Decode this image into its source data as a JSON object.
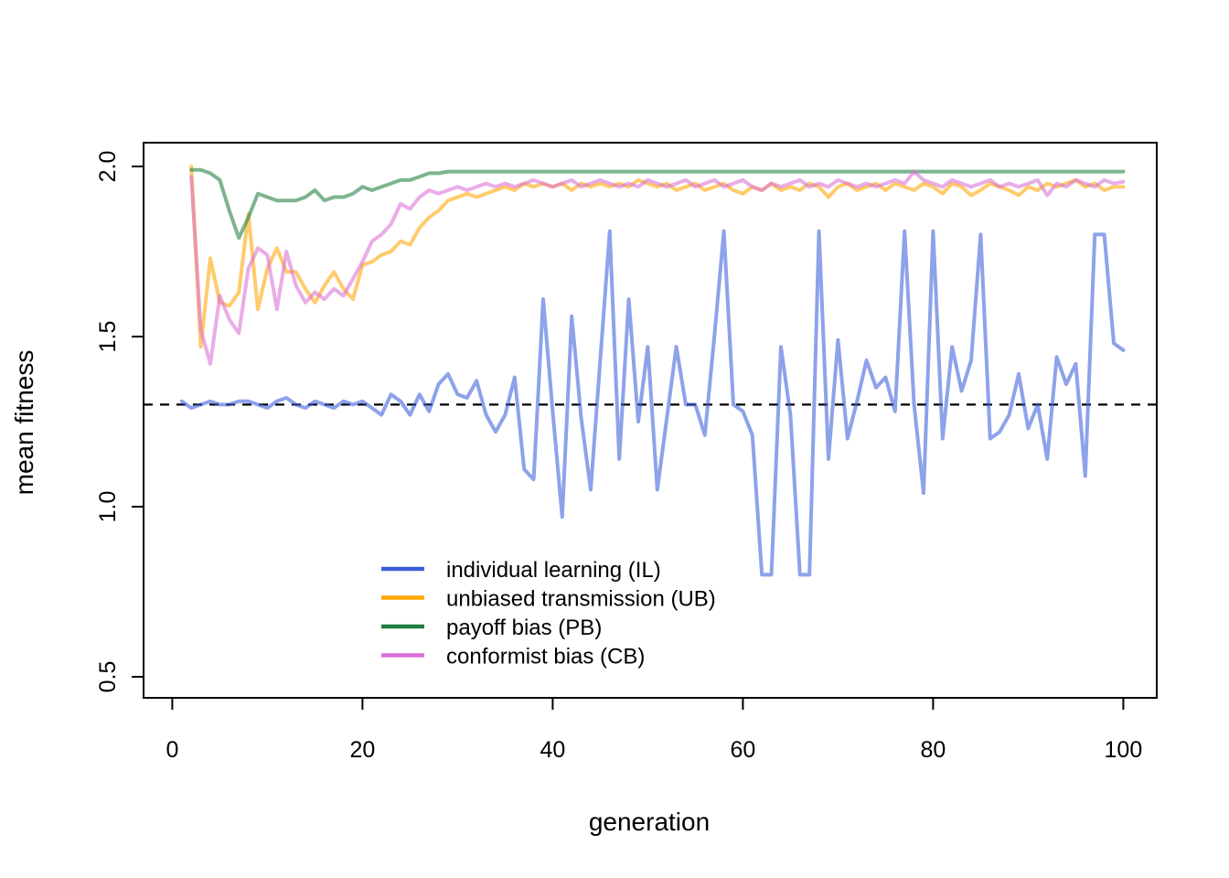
{
  "figure": {
    "background": "#ffffff"
  },
  "chart_data": {
    "type": "line",
    "title": "",
    "xlabel": "generation",
    "ylabel": "mean fitness",
    "xlim": [
      1,
      100
    ],
    "ylim": [
      0.5,
      2.0
    ],
    "x_ticks": [
      0,
      20,
      40,
      60,
      80,
      100
    ],
    "x_tick_labels": [
      "0",
      "20",
      "40",
      "60",
      "80",
      "100"
    ],
    "y_ticks": [
      0.5,
      1.0,
      1.5,
      2.0
    ],
    "y_tick_labels": [
      "0.5",
      "1.0",
      "1.5",
      "2.0"
    ],
    "grid": false,
    "legend_position": "bottom-left-inside",
    "reference_line": {
      "y": 1.3,
      "style": "dashed",
      "color": "#000000"
    },
    "series": [
      {
        "name": "individual learning (IL)",
        "color": "#3A5FDB",
        "x_start": 1,
        "values": [
          1.31,
          1.29,
          1.3,
          1.31,
          1.3,
          1.3,
          1.31,
          1.31,
          1.3,
          1.29,
          1.31,
          1.32,
          1.3,
          1.29,
          1.31,
          1.3,
          1.29,
          1.31,
          1.3,
          1.31,
          1.29,
          1.27,
          1.33,
          1.31,
          1.27,
          1.33,
          1.28,
          1.36,
          1.39,
          1.33,
          1.32,
          1.37,
          1.27,
          1.22,
          1.27,
          1.38,
          1.11,
          1.08,
          1.61,
          1.28,
          0.97,
          1.56,
          1.26,
          1.05,
          1.43,
          1.81,
          1.14,
          1.61,
          1.25,
          1.47,
          1.05,
          1.26,
          1.47,
          1.3,
          1.3,
          1.21,
          1.5,
          1.81,
          1.3,
          1.28,
          1.21,
          0.8,
          0.8,
          1.47,
          1.27,
          0.8,
          0.8,
          1.81,
          1.14,
          1.49,
          1.2,
          1.31,
          1.43,
          1.35,
          1.38,
          1.28,
          1.81,
          1.3,
          1.04,
          1.81,
          1.2,
          1.47,
          1.34,
          1.43,
          1.8,
          1.2,
          1.22,
          1.27,
          1.39,
          1.23,
          1.3,
          1.14,
          1.44,
          1.36,
          1.42,
          1.09,
          1.8,
          1.8,
          1.48,
          1.46
        ]
      },
      {
        "name": "unbiased transmission (UB)",
        "color": "#FFA500",
        "x_start": 2,
        "values": [
          2.0,
          1.47,
          1.73,
          1.6,
          1.59,
          1.63,
          1.86,
          1.58,
          1.7,
          1.76,
          1.69,
          1.69,
          1.64,
          1.6,
          1.65,
          1.69,
          1.64,
          1.61,
          1.71,
          1.72,
          1.74,
          1.75,
          1.78,
          1.77,
          1.82,
          1.85,
          1.87,
          1.9,
          1.91,
          1.92,
          1.91,
          1.92,
          1.93,
          1.94,
          1.93,
          1.95,
          1.94,
          1.95,
          1.94,
          1.95,
          1.93,
          1.95,
          1.94,
          1.95,
          1.94,
          1.95,
          1.94,
          1.96,
          1.95,
          1.94,
          1.95,
          1.93,
          1.94,
          1.95,
          1.93,
          1.94,
          1.95,
          1.93,
          1.92,
          1.94,
          1.93,
          1.95,
          1.93,
          1.94,
          1.93,
          1.95,
          1.94,
          1.91,
          1.94,
          1.95,
          1.93,
          1.94,
          1.95,
          1.93,
          1.95,
          1.94,
          1.93,
          1.95,
          1.94,
          1.92,
          1.95,
          1.94,
          1.915,
          1.93,
          1.95,
          1.94,
          1.93,
          1.915,
          1.94,
          1.93,
          1.95,
          1.94,
          1.95,
          1.96,
          1.94,
          1.95,
          1.93,
          1.94,
          1.94
        ]
      },
      {
        "name": "payoff bias (PB)",
        "color": "#1F7D3F",
        "x_start": 2,
        "values": [
          1.99,
          1.99,
          1.98,
          1.96,
          1.87,
          1.79,
          1.85,
          1.92,
          1.91,
          1.9,
          1.9,
          1.9,
          1.91,
          1.93,
          1.9,
          1.91,
          1.91,
          1.92,
          1.94,
          1.93,
          1.94,
          1.95,
          1.96,
          1.96,
          1.97,
          1.98,
          1.98,
          1.985,
          1.985,
          1.985,
          1.985,
          1.985,
          1.985,
          1.985,
          1.985,
          1.985,
          1.985,
          1.985,
          1.985,
          1.985,
          1.985,
          1.985,
          1.985,
          1.985,
          1.985,
          1.985,
          1.985,
          1.985,
          1.985,
          1.985,
          1.985,
          1.985,
          1.985,
          1.985,
          1.985,
          1.985,
          1.985,
          1.985,
          1.985,
          1.985,
          1.985,
          1.985,
          1.985,
          1.985,
          1.985,
          1.985,
          1.985,
          1.985,
          1.985,
          1.985,
          1.985,
          1.985,
          1.985,
          1.985,
          1.985,
          1.985,
          1.985,
          1.985,
          1.985,
          1.985,
          1.985,
          1.985,
          1.985,
          1.985,
          1.985,
          1.985,
          1.985,
          1.985,
          1.985,
          1.985,
          1.985,
          1.985,
          1.985,
          1.985,
          1.985,
          1.985,
          1.985,
          1.985,
          1.985
        ]
      },
      {
        "name": "conformist bias (CB)",
        "color": "#DA70D6",
        "x_start": 2,
        "values": [
          1.97,
          1.52,
          1.42,
          1.62,
          1.55,
          1.51,
          1.7,
          1.76,
          1.74,
          1.58,
          1.75,
          1.65,
          1.6,
          1.63,
          1.61,
          1.64,
          1.62,
          1.67,
          1.72,
          1.78,
          1.8,
          1.83,
          1.89,
          1.875,
          1.91,
          1.93,
          1.92,
          1.93,
          1.94,
          1.93,
          1.94,
          1.95,
          1.94,
          1.95,
          1.94,
          1.95,
          1.96,
          1.95,
          1.94,
          1.95,
          1.96,
          1.94,
          1.95,
          1.96,
          1.95,
          1.94,
          1.95,
          1.94,
          1.96,
          1.95,
          1.94,
          1.95,
          1.96,
          1.94,
          1.95,
          1.96,
          1.94,
          1.95,
          1.96,
          1.94,
          1.93,
          1.95,
          1.94,
          1.95,
          1.96,
          1.94,
          1.95,
          1.94,
          1.96,
          1.95,
          1.94,
          1.95,
          1.94,
          1.95,
          1.96,
          1.95,
          1.985,
          1.96,
          1.95,
          1.94,
          1.96,
          1.95,
          1.94,
          1.95,
          1.96,
          1.94,
          1.95,
          1.94,
          1.95,
          1.96,
          1.915,
          1.95,
          1.94,
          1.96,
          1.95,
          1.94,
          1.96,
          1.95,
          1.955
        ]
      }
    ]
  }
}
